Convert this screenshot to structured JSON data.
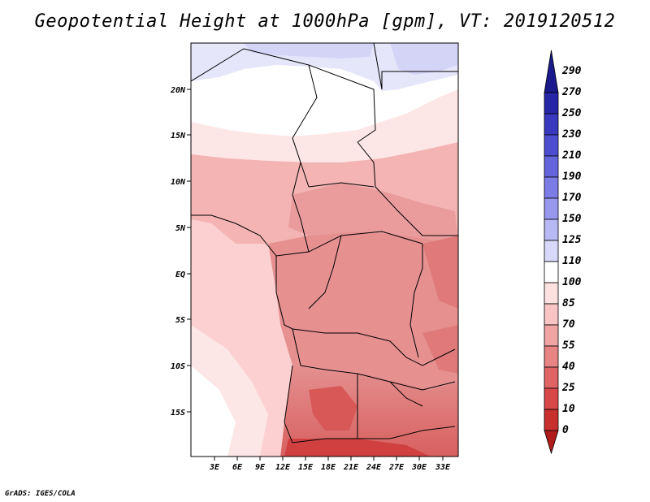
{
  "title": "Geopotential Height at 1000hPa [gpm], VT: 2019120512",
  "footer": "GrADS: IGES/COLA",
  "map": {
    "lat_labels": [
      "20N",
      "15N",
      "10N",
      "5N",
      "EQ",
      "5S",
      "10S",
      "15S"
    ],
    "lon_labels": [
      "3E",
      "6E",
      "9E",
      "12E",
      "15E",
      "18E",
      "21E",
      "24E",
      "27E",
      "30E",
      "33E"
    ]
  },
  "colorbar": {
    "levels": [
      "290",
      "270",
      "250",
      "230",
      "210",
      "190",
      "170",
      "150",
      "125",
      "110",
      "100",
      "85",
      "70",
      "55",
      "40",
      "25",
      "10",
      "0"
    ],
    "colors": [
      "#1a1a8c",
      "#2626a6",
      "#3939bf",
      "#4d4dd1",
      "#6464dc",
      "#7c7ce6",
      "#9898ee",
      "#b8b8f4",
      "#d8d8fa",
      "#ffffff",
      "#fde0e0",
      "#f8c4c4",
      "#f0a4a4",
      "#e88484",
      "#e06464",
      "#d84848",
      "#c83030",
      "#b01c1c"
    ]
  }
}
